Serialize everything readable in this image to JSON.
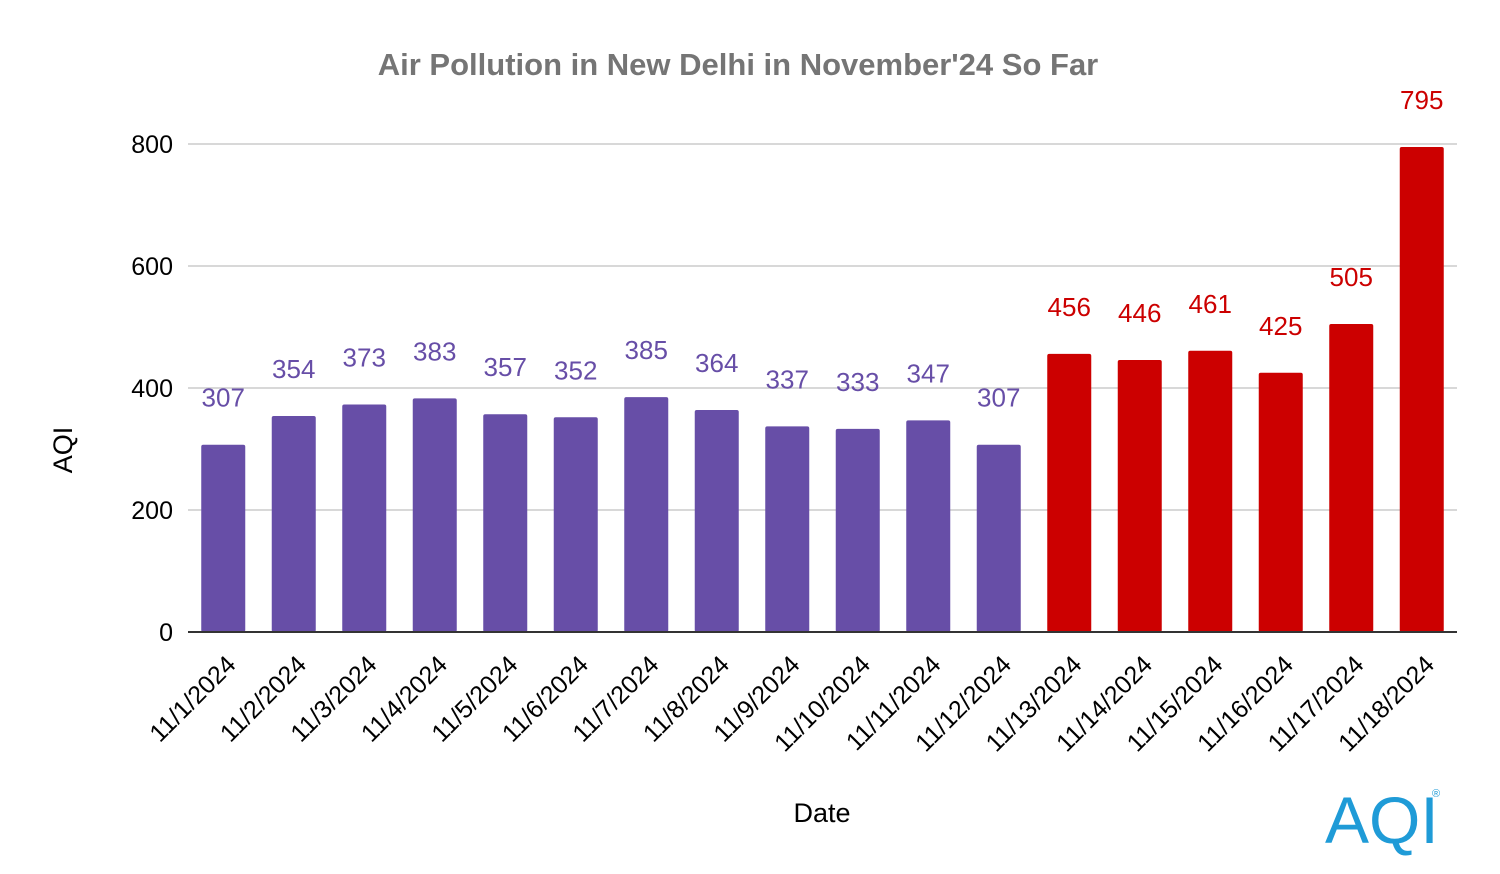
{
  "chart_data": {
    "type": "bar",
    "title": "Air Pollution in New Delhi in November'24 So Far",
    "xlabel": "Date",
    "ylabel": "AQI",
    "ylim": [
      0,
      800
    ],
    "yticks": [
      "0",
      "200",
      "400",
      "600",
      "800"
    ],
    "grid": true,
    "categories": [
      "11/1/2024",
      "11/2/2024",
      "11/3/2024",
      "11/4/2024",
      "11/5/2024",
      "11/6/2024",
      "11/7/2024",
      "11/8/2024",
      "11/9/2024",
      "11/10/2024",
      "11/11/2024",
      "11/12/2024",
      "11/13/2024",
      "11/14/2024",
      "11/15/2024",
      "11/16/2024",
      "11/17/2024",
      "11/18/2024"
    ],
    "values": [
      307,
      354,
      373,
      383,
      357,
      352,
      385,
      364,
      337,
      333,
      347,
      307,
      456,
      446,
      461,
      425,
      505,
      795
    ],
    "bar_colors": [
      "#674ea7",
      "#674ea7",
      "#674ea7",
      "#674ea7",
      "#674ea7",
      "#674ea7",
      "#674ea7",
      "#674ea7",
      "#674ea7",
      "#674ea7",
      "#674ea7",
      "#674ea7",
      "#cc0000",
      "#cc0000",
      "#cc0000",
      "#cc0000",
      "#cc0000",
      "#cc0000"
    ]
  },
  "logo": {
    "text": "AQI",
    "mark": "®",
    "colors": [
      "#1f9bd7",
      "#7ac143",
      "#f7b500",
      "#e8442c",
      "#9b59b6"
    ]
  }
}
